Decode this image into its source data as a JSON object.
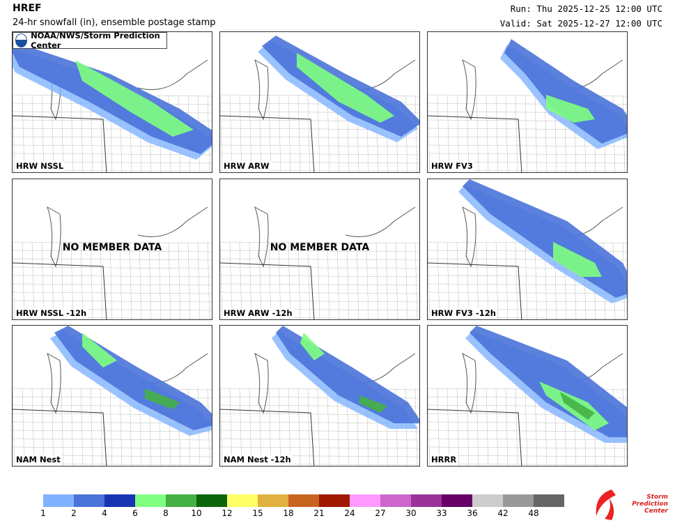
{
  "header": {
    "title": "HREF",
    "subtitle": "24-hr snowfall (in), ensemble postage stamp",
    "run": "Run: Thu 2025-12-25 12:00 UTC",
    "valid": "Valid: Sat 2025-12-27 12:00 UTC"
  },
  "logo": {
    "text": "NOAA/NWS/Storm Prediction Center"
  },
  "panels": [
    {
      "label": "HRW NSSL",
      "has_data": true
    },
    {
      "label": "HRW ARW",
      "has_data": true
    },
    {
      "label": "HRW FV3",
      "has_data": true
    },
    {
      "label": "HRW NSSL -12h",
      "has_data": false,
      "message": "NO MEMBER DATA"
    },
    {
      "label": "HRW ARW -12h",
      "has_data": false,
      "message": "NO MEMBER DATA"
    },
    {
      "label": "HRW FV3 -12h",
      "has_data": true
    },
    {
      "label": "NAM Nest",
      "has_data": true
    },
    {
      "label": "NAM Nest -12h",
      "has_data": true
    },
    {
      "label": "HRRR",
      "has_data": true
    }
  ],
  "colorbar": {
    "ticks": [
      "1",
      "2",
      "4",
      "6",
      "8",
      "10",
      "12",
      "15",
      "18",
      "21",
      "24",
      "27",
      "30",
      "33",
      "36",
      "42",
      "48"
    ],
    "colors": [
      "#80b3ff",
      "#4a73d9",
      "#1a33b3",
      "#80ff80",
      "#45b045",
      "#0b660b",
      "#ffff66",
      "#e0b040",
      "#c86420",
      "#a01800",
      "#ff99ff",
      "#cc66cc",
      "#993399",
      "#660066",
      "#cccccc",
      "#999999",
      "#666666"
    ]
  },
  "spc_logo": {
    "text": "Storm Prediction Center"
  }
}
